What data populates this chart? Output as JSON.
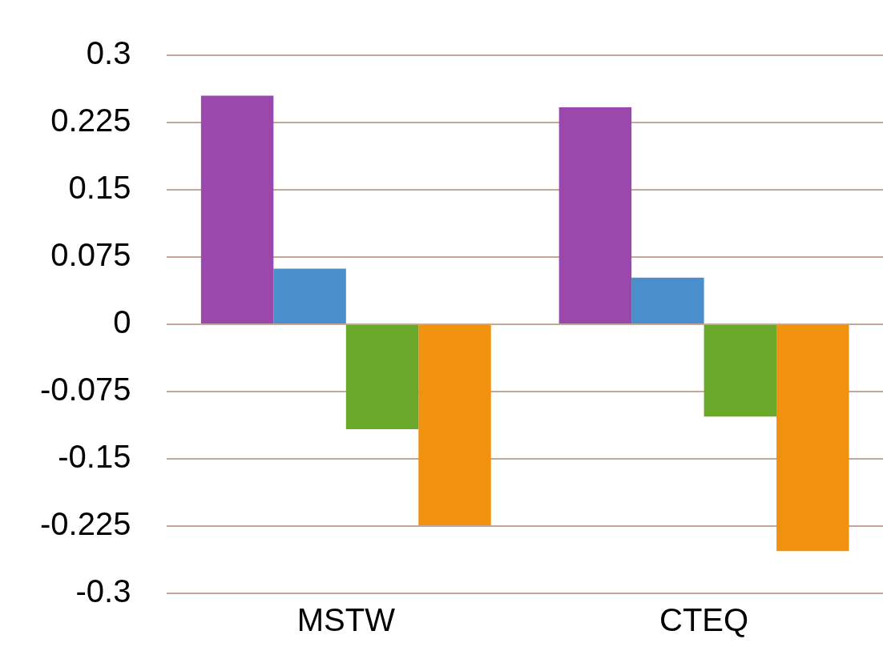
{
  "chart_data": {
    "type": "bar",
    "categories": [
      "MSTW",
      "CTEQ"
    ],
    "series": [
      {
        "color": "#9a48ab",
        "values": [
          0.255,
          0.242
        ]
      },
      {
        "color": "#4a8fcc",
        "values": [
          0.062,
          0.052
        ]
      },
      {
        "color": "#6aa82a",
        "values": [
          -0.117,
          -0.103
        ]
      },
      {
        "color": "#f0920f",
        "values": [
          -0.224,
          -0.253
        ]
      }
    ],
    "ylim": [
      -0.3,
      0.3
    ],
    "yticks": [
      -0.3,
      -0.225,
      -0.15,
      -0.075,
      0,
      0.075,
      0.15,
      0.225,
      0.3
    ],
    "grid": "y",
    "legend": false
  }
}
